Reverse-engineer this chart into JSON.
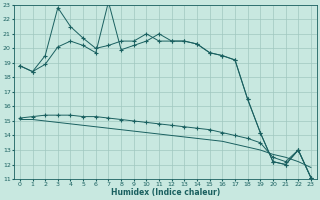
{
  "xlabel": "Humidex (Indice chaleur)",
  "background_color": "#c8e8e0",
  "grid_color": "#a0c8c0",
  "line_color": "#1a6060",
  "xlim": [
    -0.5,
    23.5
  ],
  "ylim": [
    11,
    23
  ],
  "xticks": [
    0,
    1,
    2,
    3,
    4,
    5,
    6,
    7,
    8,
    9,
    10,
    11,
    12,
    13,
    14,
    15,
    16,
    17,
    18,
    19,
    20,
    21,
    22,
    23
  ],
  "yticks": [
    11,
    12,
    13,
    14,
    15,
    16,
    17,
    18,
    19,
    20,
    21,
    22,
    23
  ],
  "line1_x": [
    0,
    1,
    2,
    3,
    4,
    5,
    6,
    7,
    8,
    9,
    10,
    11,
    12,
    13,
    14,
    15,
    16,
    17,
    18,
    19,
    20,
    21,
    22,
    23
  ],
  "line1_y": [
    18.8,
    18.4,
    19.5,
    22.8,
    21.5,
    20.7,
    20.0,
    20.2,
    20.5,
    20.5,
    21.0,
    20.5,
    20.5,
    20.5,
    20.3,
    19.7,
    19.5,
    19.2,
    16.5,
    14.2,
    12.2,
    12.0,
    13.0,
    11.1
  ],
  "line2_x": [
    0,
    1,
    2,
    3,
    4,
    5,
    6,
    7,
    8,
    9,
    10,
    11,
    12,
    13,
    14,
    15,
    16,
    17,
    18,
    19,
    20,
    21,
    22,
    23
  ],
  "line2_y": [
    18.8,
    18.4,
    18.9,
    20.1,
    20.5,
    20.2,
    19.7,
    23.2,
    19.9,
    20.2,
    20.5,
    21.0,
    20.5,
    20.5,
    20.3,
    19.7,
    19.5,
    19.2,
    16.5,
    14.2,
    12.2,
    12.0,
    13.0,
    11.1
  ],
  "line3_x": [
    0,
    1,
    2,
    3,
    4,
    5,
    6,
    7,
    8,
    9,
    10,
    11,
    12,
    13,
    14,
    15,
    16,
    17,
    18,
    19,
    20,
    21,
    22,
    23
  ],
  "line3_y": [
    15.2,
    15.3,
    15.4,
    15.4,
    15.4,
    15.3,
    15.3,
    15.2,
    15.1,
    15.0,
    14.9,
    14.8,
    14.7,
    14.6,
    14.5,
    14.4,
    14.2,
    14.0,
    13.8,
    13.5,
    12.5,
    12.2,
    13.0,
    11.1
  ],
  "line4_x": [
    0,
    1,
    2,
    3,
    4,
    5,
    6,
    7,
    8,
    9,
    10,
    11,
    12,
    13,
    14,
    15,
    16,
    17,
    18,
    19,
    20,
    21,
    22,
    23
  ],
  "line4_y": [
    15.1,
    15.1,
    15.0,
    14.9,
    14.8,
    14.7,
    14.6,
    14.5,
    14.4,
    14.3,
    14.2,
    14.1,
    14.0,
    13.9,
    13.8,
    13.7,
    13.6,
    13.4,
    13.2,
    13.0,
    12.7,
    12.5,
    12.2,
    11.8
  ]
}
